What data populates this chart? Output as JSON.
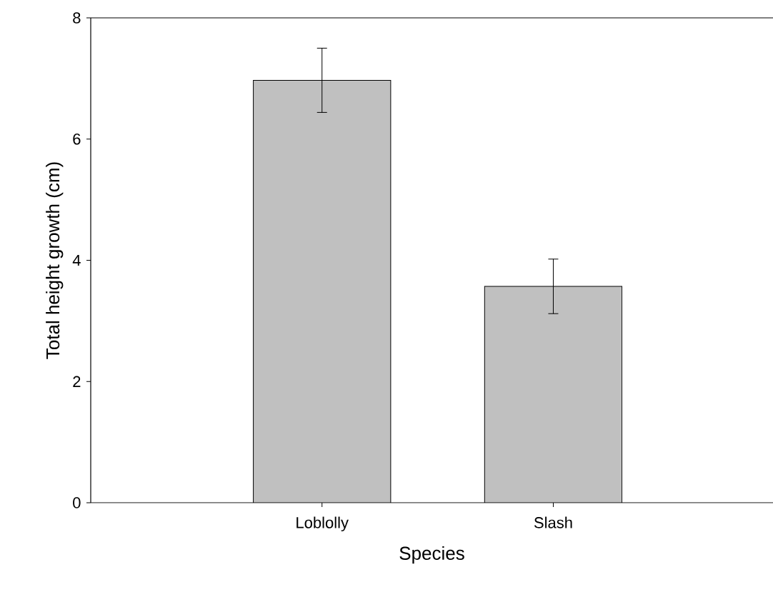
{
  "chart_data": {
    "type": "bar",
    "xlabel": "Species",
    "ylabel": "Total height growth (cm)",
    "categories": [
      "Loblolly",
      "Slash"
    ],
    "values": [
      6.97,
      3.57
    ],
    "errors": [
      0.53,
      0.45
    ],
    "color": "#c0c0c0",
    "ylim": [
      0,
      8
    ],
    "yticks": [
      0,
      2,
      4,
      6,
      8
    ],
    "grid": false
  }
}
